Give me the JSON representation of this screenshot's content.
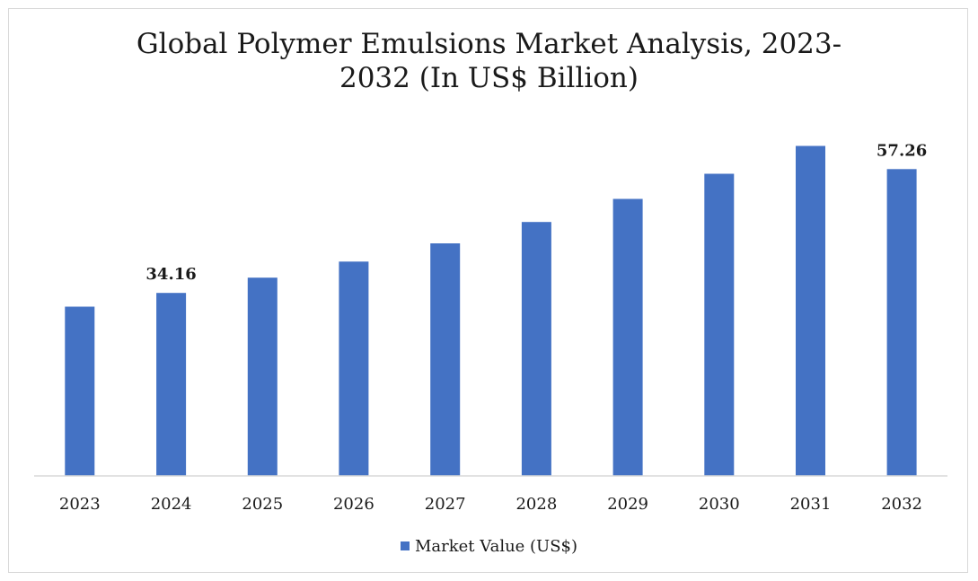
{
  "chart_data": {
    "type": "bar",
    "title_lines": [
      "Global Polymer Emulsions Market Analysis, 2023-",
      "2032 (In US$ Billion)"
    ],
    "categories": [
      "2023",
      "2024",
      "2025",
      "2026",
      "2027",
      "2028",
      "2029",
      "2030",
      "2031",
      "2032"
    ],
    "series": [
      {
        "name": "Market Value (US$)",
        "color": "#4472c4",
        "values": [
          31.6,
          34.16,
          37.0,
          40.0,
          43.4,
          47.4,
          51.7,
          56.4,
          61.6,
          57.26
        ]
      }
    ],
    "data_labels": {
      "2024": "34.16",
      "2032": "57.26"
    },
    "ylim": [
      0,
      60
    ],
    "grid": false,
    "legend_position": "bottom",
    "xlabel": "",
    "ylabel": ""
  }
}
